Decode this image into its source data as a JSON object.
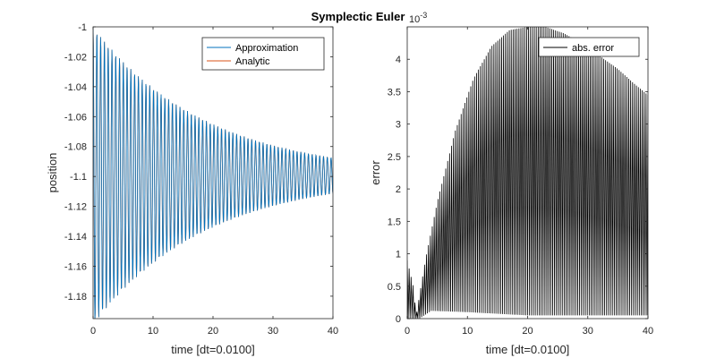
{
  "figure_title": "Symplectic Euler",
  "chart_data": [
    {
      "type": "line",
      "title": "",
      "xlabel": "time [dt=0.0100]",
      "ylabel": "position",
      "xlim": [
        0,
        40
      ],
      "ylim": [
        -1.195,
        -1.0
      ],
      "xticks": [
        0,
        10,
        20,
        30,
        40
      ],
      "yticks": [
        -1,
        -1.02,
        -1.04,
        -1.06,
        -1.08,
        -1.1,
        -1.12,
        -1.14,
        -1.16,
        -1.18
      ],
      "legend_location": "top-right",
      "series": [
        {
          "name": "Approximation",
          "color": "#0072BD",
          "pattern": "damped oscillation",
          "center": -1.0995,
          "amplitude_start": 0.0995,
          "amplitude_end": 0.012,
          "period": 0.63
        },
        {
          "name": "Analytic",
          "color": "#D95319",
          "pattern": "damped oscillation",
          "center": -1.0995,
          "amplitude_start": 0.0995,
          "amplitude_end": 0.012,
          "period": 0.63
        }
      ]
    },
    {
      "type": "line",
      "title": "",
      "xlabel": "time [dt=0.0100]",
      "ylabel": "error",
      "xlim": [
        0,
        40
      ],
      "ylim": [
        0,
        4.5
      ],
      "xticks": [
        0,
        10,
        20,
        30,
        40
      ],
      "yticks": [
        0,
        0.5,
        1,
        1.5,
        2,
        2.5,
        3,
        3.5,
        4
      ],
      "y_exponent": "10^-3",
      "y_exponent_base": "10",
      "y_exponent_power": "-3",
      "legend_location": "top-right",
      "series": [
        {
          "name": "abs. error",
          "color": "#000000",
          "pattern": "oscillating absolute error",
          "envelope": [
            [
              0,
              0.9
            ],
            [
              1,
              0.5
            ],
            [
              1.5,
              0.05
            ],
            [
              3,
              0.9
            ],
            [
              5,
              1.8
            ],
            [
              8,
              2.9
            ],
            [
              11,
              3.7
            ],
            [
              14,
              4.2
            ],
            [
              17,
              4.45
            ],
            [
              20,
              4.5
            ],
            [
              23,
              4.5
            ],
            [
              26,
              4.4
            ],
            [
              29,
              4.25
            ],
            [
              32,
              4.05
            ],
            [
              35,
              3.85
            ],
            [
              38,
              3.6
            ],
            [
              40,
              3.45
            ]
          ],
          "floor": [
            [
              0,
              0.0
            ],
            [
              2,
              0.0
            ],
            [
              4,
              0.12
            ],
            [
              10,
              0.1
            ],
            [
              20,
              0.05
            ],
            [
              30,
              0.05
            ],
            [
              40,
              0.05
            ]
          ]
        }
      ]
    }
  ]
}
